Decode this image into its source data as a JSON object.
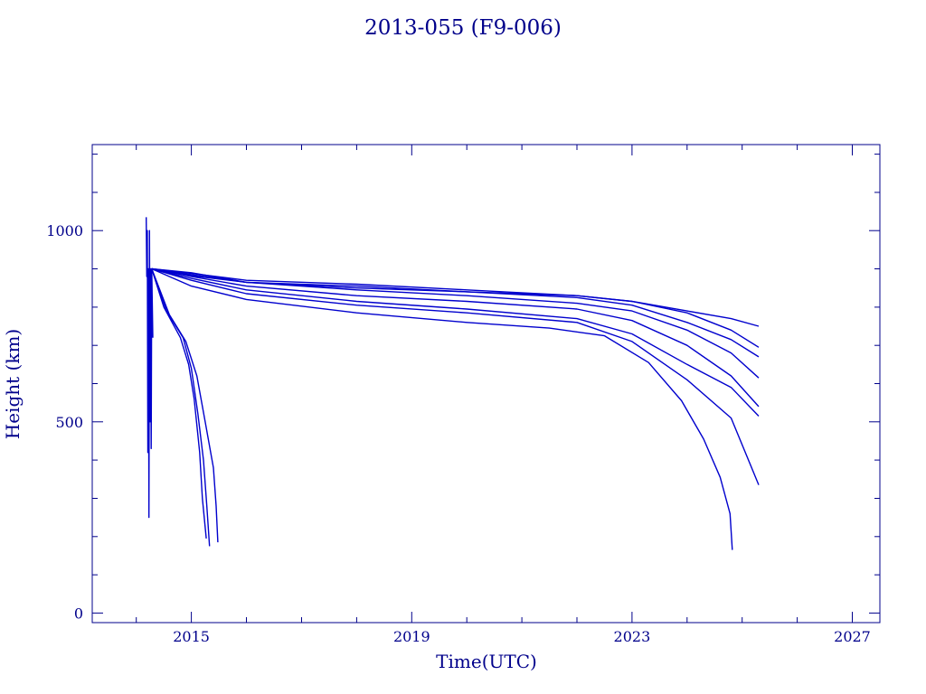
{
  "chart_data": {
    "type": "line",
    "title": "2013-055 (F9-006)",
    "xlabel": "Time(UTC)",
    "ylabel": "Height (km)",
    "xlim": [
      2013.2,
      2027.5
    ],
    "ylim": [
      -25,
      1225
    ],
    "xticks": [
      2015,
      2019,
      2023,
      2027
    ],
    "xtick_labels": [
      "2015",
      "2019",
      "2023",
      "2027"
    ],
    "yticks": [
      0,
      500,
      1000
    ],
    "ytick_labels": [
      "0",
      "500",
      "1000"
    ],
    "grid": false,
    "legend": "none",
    "line_color": "#0000cd",
    "axis_color": "#00008b",
    "series": [
      {
        "x": [
          2014.28,
          2014.5,
          2014.8,
          2014.95,
          2015.05,
          2015.15,
          2015.2,
          2015.27
        ],
        "y": [
          900,
          800,
          720,
          650,
          560,
          420,
          300,
          195
        ]
      },
      {
        "x": [
          2014.28,
          2014.55,
          2014.85,
          2015.0,
          2015.12,
          2015.22,
          2015.28,
          2015.33
        ],
        "y": [
          900,
          790,
          720,
          640,
          520,
          400,
          280,
          175
        ]
      },
      {
        "x": [
          2014.28,
          2014.6,
          2014.9,
          2015.1,
          2015.25,
          2015.4,
          2015.45,
          2015.48
        ],
        "y": [
          900,
          780,
          710,
          620,
          500,
          380,
          280,
          185
        ]
      },
      {
        "x": [
          2014.28,
          2015.0,
          2016.0,
          2018.0,
          2020.0,
          2021.5,
          2022.5,
          2023.3,
          2023.9,
          2024.3,
          2024.6,
          2024.78,
          2024.82
        ],
        "y": [
          900,
          855,
          820,
          785,
          760,
          745,
          725,
          655,
          555,
          455,
          355,
          260,
          165
        ]
      },
      {
        "x": [
          2014.28,
          2015.0,
          2016.0,
          2018.0,
          2020.0,
          2022.0,
          2023.0,
          2024.0,
          2024.8,
          2025.3
        ],
        "y": [
          900,
          870,
          835,
          805,
          785,
          760,
          710,
          610,
          510,
          335
        ]
      },
      {
        "x": [
          2014.28,
          2015.0,
          2016.0,
          2018.0,
          2020.0,
          2022.0,
          2023.0,
          2024.0,
          2024.8,
          2025.3
        ],
        "y": [
          900,
          875,
          845,
          815,
          795,
          770,
          730,
          650,
          590,
          515
        ]
      },
      {
        "x": [
          2014.28,
          2015.0,
          2016.0,
          2018.0,
          2020.0,
          2022.0,
          2023.0,
          2024.0,
          2024.8,
          2025.3
        ],
        "y": [
          900,
          880,
          855,
          830,
          815,
          795,
          765,
          700,
          620,
          540
        ]
      },
      {
        "x": [
          2014.28,
          2015.0,
          2016.0,
          2018.0,
          2020.0,
          2022.0,
          2023.0,
          2024.0,
          2024.8,
          2025.3
        ],
        "y": [
          900,
          882,
          865,
          845,
          830,
          810,
          790,
          740,
          680,
          615
        ]
      },
      {
        "x": [
          2014.28,
          2015.0,
          2016.0,
          2018.0,
          2020.0,
          2022.0,
          2023.0,
          2024.0,
          2024.8,
          2025.3
        ],
        "y": [
          900,
          885,
          865,
          855,
          840,
          825,
          805,
          760,
          715,
          670
        ]
      },
      {
        "x": [
          2014.28,
          2015.0,
          2016.0,
          2018.0,
          2020.0,
          2022.0,
          2023.0,
          2024.0,
          2024.8,
          2025.3
        ],
        "y": [
          900,
          888,
          870,
          860,
          845,
          830,
          815,
          785,
          740,
          695
        ]
      },
      {
        "x": [
          2014.28,
          2015.0,
          2016.0,
          2018.0,
          2020.0,
          2022.0,
          2023.0,
          2024.0,
          2024.8,
          2025.3
        ],
        "y": [
          900,
          890,
          865,
          850,
          840,
          830,
          815,
          790,
          770,
          750
        ]
      },
      {
        "x": [
          2014.18,
          2014.19,
          2014.2,
          2014.21,
          2014.22,
          2014.23,
          2014.24,
          2014.25,
          2014.26,
          2014.27,
          2014.28,
          2014.3
        ],
        "y": [
          1035,
          880,
          1000,
          420,
          900,
          250,
          1000,
          500,
          900,
          430,
          900,
          720
        ]
      }
    ]
  }
}
